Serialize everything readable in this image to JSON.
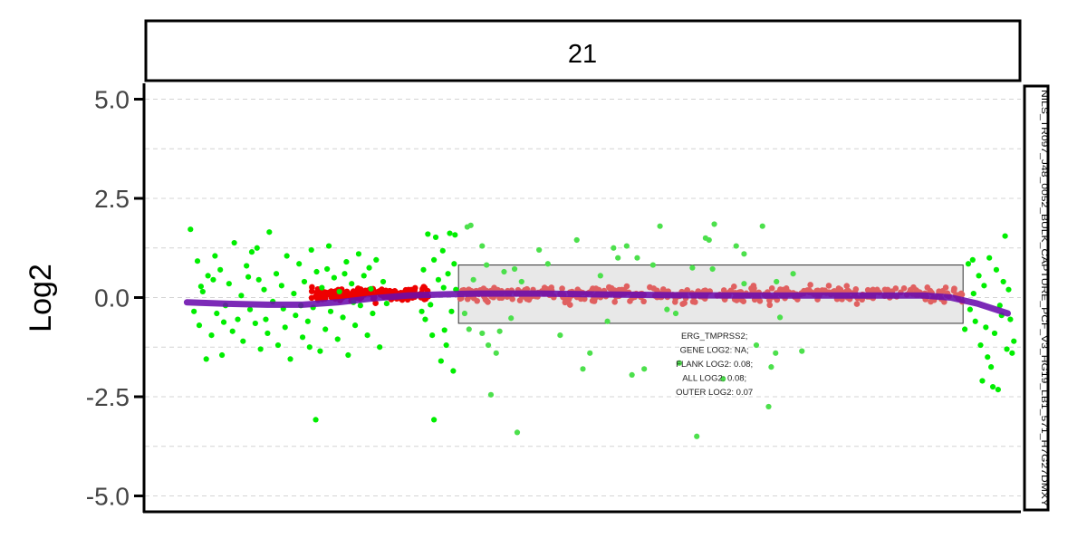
{
  "chart_data": {
    "type": "scatter",
    "facet_label": "21",
    "side_label": "NILS_TR097_J48_0052_BULK_CAPTURE_PCF_V3_HG19_LB1_571_H7G27DMXY",
    "ylabel": "Log2",
    "ylim": [
      -5.4,
      5.4
    ],
    "xlim": [
      0,
      100
    ],
    "yticks": [
      5.0,
      2.5,
      0.0,
      -2.5,
      -5.0
    ],
    "ytick_labels": [
      "5.0",
      "2.5",
      "0.0",
      "-2.5",
      "-5.0"
    ],
    "grid": true,
    "colors": {
      "outlier": "#00ee00",
      "outlier_in_gene": "#4ce04c",
      "dense": "#ee0000",
      "dense_in_gene": "#e06060",
      "trend": "#6a0dad",
      "gene_fill": "#e8e8e8",
      "grid": "#d4d4d4"
    },
    "gene_region": {
      "x_range": [
        35.8,
        93.4
      ],
      "y_range": [
        -0.65,
        0.82
      ],
      "annotation_lines": [
        "ERG_TMPRSS2;",
        "GENE LOG2: NA;",
        "FLANK LOG2: 0.08;",
        "ALL LOG2: 0.08;",
        "OUTER LOG2: 0.07"
      ]
    },
    "trend_line": {
      "x": [
        4.8,
        10,
        14,
        18,
        22,
        26,
        30,
        34,
        38,
        45,
        52,
        60,
        68,
        76,
        84,
        89,
        92,
        95,
        98.5
      ],
      "y": [
        -0.12,
        -0.16,
        -0.18,
        -0.18,
        -0.12,
        -0.02,
        0.05,
        0.08,
        0.1,
        0.1,
        0.08,
        0.06,
        0.05,
        0.05,
        0.05,
        0.05,
        0.0,
        -0.15,
        -0.4
      ]
    },
    "series": [
      {
        "category": "dense_low_variance",
        "segments": [
          {
            "x_range": [
              19,
              32.5
            ],
            "mean": 0.07,
            "sd": 0.08,
            "n": 170
          },
          {
            "x_range": [
              35.8,
              93.4
            ],
            "mean": 0.08,
            "sd": 0.09,
            "n": 460
          }
        ]
      },
      {
        "category": "outlier_high_variance",
        "points": [
          [
            5.2,
            1.72
          ],
          [
            5.6,
            -0.35
          ],
          [
            6.0,
            0.92
          ],
          [
            6.2,
            -0.7
          ],
          [
            6.6,
            0.15
          ],
          [
            7.0,
            -1.55
          ],
          [
            7.2,
            0.55
          ],
          [
            7.6,
            -0.95
          ],
          [
            8.0,
            1.05
          ],
          [
            8.2,
            -0.4
          ],
          [
            8.6,
            0.7
          ],
          [
            8.8,
            -1.45
          ],
          [
            9.2,
            -0.2
          ],
          [
            9.6,
            0.35
          ],
          [
            10.0,
            -0.85
          ],
          [
            10.2,
            1.38
          ],
          [
            10.6,
            -0.55
          ],
          [
            11.0,
            0.05
          ],
          [
            11.2,
            -1.1
          ],
          [
            11.6,
            0.8
          ],
          [
            12.0,
            -0.3
          ],
          [
            12.2,
            1.15
          ],
          [
            12.6,
            -0.65
          ],
          [
            13.0,
            0.45
          ],
          [
            13.2,
            -1.3
          ],
          [
            13.6,
            0.2
          ],
          [
            14.0,
            -0.9
          ],
          [
            14.2,
            1.65
          ],
          [
            14.6,
            -0.1
          ],
          [
            15.0,
            0.6
          ],
          [
            15.2,
            -1.2
          ],
          [
            15.6,
            0.3
          ],
          [
            16.0,
            -0.75
          ],
          [
            16.2,
            1.05
          ],
          [
            16.6,
            -1.55
          ],
          [
            17.0,
            0.1
          ],
          [
            17.2,
            -0.45
          ],
          [
            17.6,
            0.85
          ],
          [
            18.0,
            -1.0
          ],
          [
            18.2,
            0.4
          ],
          [
            18.6,
            -0.6
          ],
          [
            19.0,
            1.2
          ],
          [
            19.2,
            -0.25
          ],
          [
            19.6,
            0.65
          ],
          [
            20.0,
            -1.35
          ],
          [
            20.2,
            0.25
          ],
          [
            20.6,
            -0.8
          ],
          [
            21.0,
            1.3
          ],
          [
            21.2,
            -0.35
          ],
          [
            21.6,
            0.5
          ],
          [
            22.0,
            -1.05
          ],
          [
            22.2,
            0.15
          ],
          [
            22.6,
            -0.5
          ],
          [
            23.0,
            0.9
          ],
          [
            23.2,
            -1.45
          ],
          [
            23.6,
            0.35
          ],
          [
            24.0,
            -0.7
          ],
          [
            24.4,
            1.1
          ],
          [
            24.6,
            -0.2
          ],
          [
            25.0,
            0.55
          ],
          [
            25.4,
            -0.95
          ],
          [
            25.6,
            0.75
          ],
          [
            26.0,
            -0.4
          ],
          [
            26.4,
            0.95
          ],
          [
            26.8,
            -1.25
          ],
          [
            27.2,
            0.4
          ],
          [
            27.6,
            -0.15
          ],
          [
            6.4,
            0.28
          ],
          [
            9.0,
            -0.62
          ],
          [
            11.8,
            0.52
          ],
          [
            15.8,
            -0.28
          ],
          [
            20.8,
            0.72
          ],
          [
            23.8,
            -0.12
          ],
          [
            25.8,
            0.22
          ],
          [
            7.8,
            0.45
          ],
          [
            13.8,
            -0.55
          ],
          [
            17.8,
            -0.2
          ],
          [
            22.8,
            0.6
          ],
          [
            12.8,
            1.25
          ],
          [
            18.8,
            -1.25
          ],
          [
            37.5,
            0.45
          ],
          [
            39.0,
            0.82
          ],
          [
            41.0,
            0.65
          ],
          [
            36.5,
            -0.4
          ],
          [
            40.5,
            -0.85
          ],
          [
            42.2,
            0.72
          ],
          [
            64.8,
            0.72
          ],
          [
            74.0,
            0.6
          ],
          [
            68.4,
            0.35
          ],
          [
            72.1,
            0.4
          ],
          [
            38.5,
            -0.9
          ],
          [
            40.1,
            -1.4
          ],
          [
            41.8,
            -0.52
          ],
          [
            43.0,
            0.4
          ],
          [
            34.6,
            0.6
          ],
          [
            35.0,
            -0.35
          ],
          [
            35.3,
            0.85
          ],
          [
            34.2,
            -0.82
          ],
          [
            35.5,
            0.2
          ],
          [
            32.3,
            1.6
          ],
          [
            33.2,
            1.52
          ],
          [
            34.0,
            1.18
          ],
          [
            34.8,
            1.62
          ],
          [
            35.4,
            1.58
          ],
          [
            34.4,
            -1.2
          ],
          [
            35.2,
            -1.85
          ],
          [
            33.8,
            -1.6
          ],
          [
            32.0,
            -0.55
          ],
          [
            33.0,
            0.95
          ],
          [
            32.6,
            -0.18
          ],
          [
            33.5,
            0.45
          ],
          [
            31.8,
            0.7
          ],
          [
            32.8,
            -0.95
          ],
          [
            31.6,
            -0.35
          ],
          [
            34.1,
            0.25
          ],
          [
            36.8,
            1.78
          ],
          [
            37.2,
            1.82
          ],
          [
            38.5,
            1.3
          ],
          [
            37.0,
            -0.8
          ],
          [
            39.2,
            -1.2
          ],
          [
            39.5,
            -2.45
          ],
          [
            42.5,
            -3.4
          ],
          [
            45.0,
            1.2
          ],
          [
            46.0,
            0.85
          ],
          [
            47.4,
            -0.95
          ],
          [
            49.3,
            1.45
          ],
          [
            50.0,
            -1.8
          ],
          [
            50.8,
            -1.4
          ],
          [
            52.0,
            0.55
          ],
          [
            52.8,
            -0.6
          ],
          [
            53.5,
            1.25
          ],
          [
            54.0,
            1.0
          ],
          [
            55.0,
            1.3
          ],
          [
            55.6,
            -1.95
          ],
          [
            56.2,
            1.0
          ],
          [
            57.0,
            -1.8
          ],
          [
            58.0,
            0.82
          ],
          [
            58.8,
            1.8
          ],
          [
            59.6,
            -0.3
          ],
          [
            60.6,
            -0.4
          ],
          [
            61.0,
            -1.65
          ],
          [
            62.5,
            0.75
          ],
          [
            63.0,
            -3.5
          ],
          [
            64.0,
            1.5
          ],
          [
            64.4,
            1.45
          ],
          [
            65.0,
            1.85
          ],
          [
            66.0,
            -2.05
          ],
          [
            67.5,
            1.3
          ],
          [
            68.4,
            1.1
          ],
          [
            69.8,
            -1.2
          ],
          [
            70.5,
            1.8
          ],
          [
            71.2,
            -2.75
          ],
          [
            71.5,
            -1.75
          ],
          [
            72.0,
            -1.4
          ],
          [
            72.5,
            -0.5
          ],
          [
            75.0,
            -1.35
          ],
          [
            33.0,
            -3.08
          ],
          [
            19.5,
            -3.08
          ],
          [
            94.0,
            0.85
          ],
          [
            94.5,
            0.95
          ],
          [
            95.2,
            0.55
          ],
          [
            95.8,
            0.3
          ],
          [
            96.4,
            1.0
          ],
          [
            97.0,
            -0.9
          ],
          [
            97.6,
            -0.2
          ],
          [
            98.0,
            0.4
          ],
          [
            98.4,
            -1.3
          ],
          [
            98.8,
            -0.55
          ],
          [
            99.2,
            -1.1
          ],
          [
            94.2,
            -0.3
          ],
          [
            94.8,
            -0.6
          ],
          [
            95.4,
            -1.2
          ],
          [
            96.0,
            -0.75
          ],
          [
            96.6,
            -1.75
          ],
          [
            97.2,
            0.7
          ],
          [
            97.8,
            -0.45
          ],
          [
            98.2,
            1.55
          ],
          [
            98.6,
            0.2
          ],
          [
            99.0,
            -1.4
          ],
          [
            95.6,
            -2.1
          ],
          [
            96.8,
            -2.25
          ],
          [
            97.4,
            -2.32
          ],
          [
            96.2,
            -1.5
          ],
          [
            94.6,
            0.1
          ],
          [
            93.6,
            -0.8
          ]
        ]
      }
    ]
  }
}
